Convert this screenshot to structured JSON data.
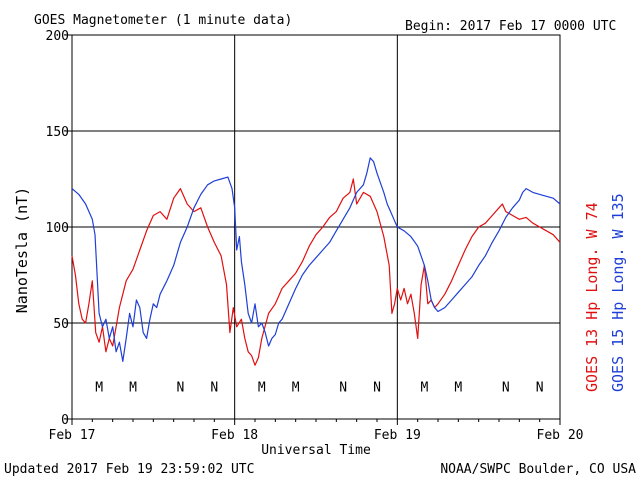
{
  "header": {
    "title": "GOES Magnetometer (1 minute data)",
    "begin": "Begin:  2017 Feb 17 0000 UTC"
  },
  "footer": {
    "updated": "Updated 2017 Feb 19 23:59:02 UTC",
    "credit": "NOAA/SWPC Boulder, CO USA"
  },
  "chart_data": {
    "type": "line",
    "title": "GOES Magnetometer (1 minute data)",
    "xlabel": "Universal Time",
    "ylabel": "NanoTesla (nT)",
    "xlim": [
      0,
      72
    ],
    "x_unit": "hours since 2017 Feb 17 0000 UTC",
    "ylim": [
      0,
      200
    ],
    "yticks": [
      0,
      50,
      100,
      150,
      200
    ],
    "xticks": [
      {
        "label": "Feb 17",
        "x": 0
      },
      {
        "label": "Feb 18",
        "x": 24
      },
      {
        "label": "Feb 19",
        "x": 48
      },
      {
        "label": "Feb 20",
        "x": 72
      }
    ],
    "grid": true,
    "series": [
      {
        "name": "GOES 13 Hp  Long. W 74",
        "color": "#e01010",
        "points": [
          [
            0,
            85
          ],
          [
            0.5,
            75
          ],
          [
            1,
            60
          ],
          [
            1.5,
            52
          ],
          [
            2,
            50
          ],
          [
            2.5,
            60
          ],
          [
            3,
            72
          ],
          [
            3.5,
            45
          ],
          [
            4,
            40
          ],
          [
            4.5,
            48
          ],
          [
            5,
            35
          ],
          [
            5.5,
            42
          ],
          [
            6,
            38
          ],
          [
            6.5,
            48
          ],
          [
            7,
            58
          ],
          [
            7.5,
            65
          ],
          [
            8,
            72
          ],
          [
            9,
            78
          ],
          [
            10,
            88
          ],
          [
            11,
            98
          ],
          [
            12,
            106
          ],
          [
            13,
            108
          ],
          [
            14,
            104
          ],
          [
            15,
            115
          ],
          [
            16,
            120
          ],
          [
            17,
            112
          ],
          [
            18,
            108
          ],
          [
            19,
            110
          ],
          [
            20,
            100
          ],
          [
            21,
            92
          ],
          [
            22,
            85
          ],
          [
            22.8,
            70
          ],
          [
            23.3,
            45
          ],
          [
            23.8,
            58
          ],
          [
            24.3,
            48
          ],
          [
            25,
            52
          ],
          [
            25.5,
            42
          ],
          [
            26,
            35
          ],
          [
            26.5,
            33
          ],
          [
            27,
            28
          ],
          [
            27.5,
            32
          ],
          [
            28,
            42
          ],
          [
            29,
            55
          ],
          [
            30,
            60
          ],
          [
            31,
            68
          ],
          [
            32,
            72
          ],
          [
            33,
            76
          ],
          [
            34,
            82
          ],
          [
            35,
            90
          ],
          [
            36,
            96
          ],
          [
            37,
            100
          ],
          [
            38,
            105
          ],
          [
            39,
            108
          ],
          [
            40,
            115
          ],
          [
            41,
            118
          ],
          [
            41.5,
            125
          ],
          [
            42,
            112
          ],
          [
            43,
            118
          ],
          [
            44,
            116
          ],
          [
            45,
            108
          ],
          [
            46,
            95
          ],
          [
            46.8,
            80
          ],
          [
            47.2,
            55
          ],
          [
            47.6,
            60
          ],
          [
            48,
            68
          ],
          [
            48.5,
            62
          ],
          [
            49,
            68
          ],
          [
            49.5,
            60
          ],
          [
            50,
            65
          ],
          [
            50.5,
            55
          ],
          [
            51,
            42
          ],
          [
            51.5,
            70
          ],
          [
            52,
            80
          ],
          [
            52.5,
            60
          ],
          [
            53,
            62
          ],
          [
            53.5,
            58
          ],
          [
            54,
            60
          ],
          [
            55,
            65
          ],
          [
            56,
            72
          ],
          [
            57,
            80
          ],
          [
            58,
            88
          ],
          [
            59,
            95
          ],
          [
            60,
            100
          ],
          [
            61,
            102
          ],
          [
            62,
            106
          ],
          [
            63,
            110
          ],
          [
            63.5,
            112
          ],
          [
            64,
            108
          ],
          [
            65,
            106
          ],
          [
            66,
            104
          ],
          [
            67,
            105
          ],
          [
            68,
            102
          ],
          [
            69,
            100
          ],
          [
            70,
            98
          ],
          [
            71,
            96
          ],
          [
            72,
            92
          ]
        ]
      },
      {
        "name": "GOES 15 Hp  Long. W 135",
        "color": "#1f3fd6",
        "points": [
          [
            0,
            120
          ],
          [
            1,
            117
          ],
          [
            2,
            112
          ],
          [
            3,
            104
          ],
          [
            3.4,
            96
          ],
          [
            3.7,
            75
          ],
          [
            4,
            55
          ],
          [
            4.5,
            48
          ],
          [
            5,
            52
          ],
          [
            5.5,
            42
          ],
          [
            6,
            48
          ],
          [
            6.5,
            35
          ],
          [
            7,
            40
          ],
          [
            7.5,
            30
          ],
          [
            8,
            42
          ],
          [
            8.5,
            55
          ],
          [
            9,
            48
          ],
          [
            9.5,
            62
          ],
          [
            10,
            58
          ],
          [
            10.5,
            45
          ],
          [
            11,
            42
          ],
          [
            11.5,
            52
          ],
          [
            12,
            60
          ],
          [
            12.5,
            58
          ],
          [
            13,
            65
          ],
          [
            14,
            72
          ],
          [
            15,
            80
          ],
          [
            16,
            92
          ],
          [
            17,
            100
          ],
          [
            18,
            110
          ],
          [
            19,
            117
          ],
          [
            20,
            122
          ],
          [
            21,
            124
          ],
          [
            22,
            125
          ],
          [
            23,
            126
          ],
          [
            23.6,
            120
          ],
          [
            24,
            110
          ],
          [
            24.3,
            88
          ],
          [
            24.7,
            95
          ],
          [
            25,
            82
          ],
          [
            25.5,
            70
          ],
          [
            26,
            55
          ],
          [
            26.5,
            50
          ],
          [
            27,
            60
          ],
          [
            27.5,
            48
          ],
          [
            28,
            50
          ],
          [
            28.5,
            45
          ],
          [
            29,
            38
          ],
          [
            29.5,
            42
          ],
          [
            30,
            44
          ],
          [
            30.5,
            50
          ],
          [
            31,
            52
          ],
          [
            32,
            60
          ],
          [
            33,
            68
          ],
          [
            34,
            75
          ],
          [
            35,
            80
          ],
          [
            36,
            84
          ],
          [
            37,
            88
          ],
          [
            38,
            92
          ],
          [
            39,
            98
          ],
          [
            40,
            104
          ],
          [
            41,
            110
          ],
          [
            42,
            118
          ],
          [
            43,
            122
          ],
          [
            43.5,
            128
          ],
          [
            44,
            136
          ],
          [
            44.5,
            134
          ],
          [
            45,
            128
          ],
          [
            46,
            118
          ],
          [
            46.5,
            112
          ],
          [
            47,
            108
          ],
          [
            47.5,
            104
          ],
          [
            48,
            100
          ],
          [
            49,
            98
          ],
          [
            50,
            95
          ],
          [
            51,
            90
          ],
          [
            52,
            80
          ],
          [
            52.5,
            72
          ],
          [
            53,
            62
          ],
          [
            53.5,
            58
          ],
          [
            54,
            56
          ],
          [
            55,
            58
          ],
          [
            56,
            62
          ],
          [
            57,
            66
          ],
          [
            58,
            70
          ],
          [
            59,
            74
          ],
          [
            60,
            80
          ],
          [
            61,
            85
          ],
          [
            62,
            92
          ],
          [
            63,
            98
          ],
          [
            64,
            105
          ],
          [
            65,
            110
          ],
          [
            66,
            114
          ],
          [
            66.5,
            118
          ],
          [
            67,
            120
          ],
          [
            68,
            118
          ],
          [
            69,
            117
          ],
          [
            70,
            116
          ],
          [
            71,
            115
          ],
          [
            72,
            112
          ]
        ]
      }
    ],
    "markers": [
      {
        "label": "M",
        "color": "#e01010",
        "x": 4
      },
      {
        "label": "M",
        "color": "#1f3fd6",
        "x": 9
      },
      {
        "label": "N",
        "color": "#e01010",
        "x": 16
      },
      {
        "label": "N",
        "color": "#1f3fd6",
        "x": 21
      },
      {
        "label": "M",
        "color": "#e01010",
        "x": 28
      },
      {
        "label": "M",
        "color": "#1f3fd6",
        "x": 33
      },
      {
        "label": "N",
        "color": "#e01010",
        "x": 40
      },
      {
        "label": "N",
        "color": "#1f3fd6",
        "x": 45
      },
      {
        "label": "M",
        "color": "#e01010",
        "x": 52
      },
      {
        "label": "M",
        "color": "#1f3fd6",
        "x": 57
      },
      {
        "label": "N",
        "color": "#e01010",
        "x": 64
      },
      {
        "label": "N",
        "color": "#1f3fd6",
        "x": 69
      }
    ],
    "marker_level": 17
  }
}
